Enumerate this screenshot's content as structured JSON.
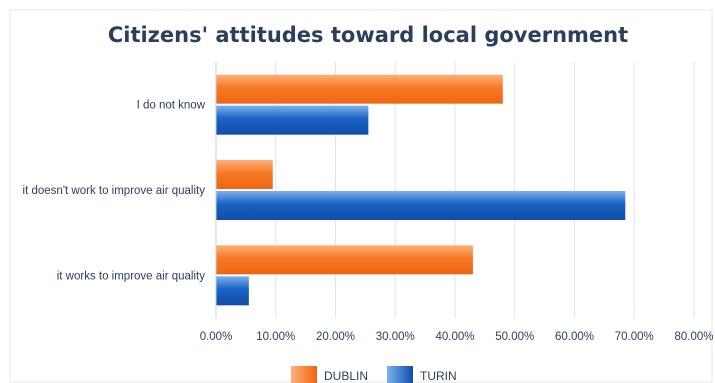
{
  "chart_data": {
    "type": "bar",
    "orientation": "horizontal",
    "title": "Citizens' attitudes toward local government",
    "categories": [
      "I do not know",
      "it doesn't  work to improve air quality",
      "it works to improve air quality"
    ],
    "series": [
      {
        "name": "DUBLIN",
        "color": "#f57a25",
        "values": [
          48,
          9.5,
          43
        ]
      },
      {
        "name": "TURIN",
        "color": "#1a62c4",
        "values": [
          25.5,
          68.5,
          5.5
        ]
      }
    ],
    "xlim": [
      0,
      80
    ],
    "xticks": [
      "0.00%",
      "10.00%",
      "20.00%",
      "30.00%",
      "40.00%",
      "50.00%",
      "60.00%",
      "70.00%",
      "80.00%"
    ],
    "grid": "vertical",
    "legend": "bottom"
  }
}
